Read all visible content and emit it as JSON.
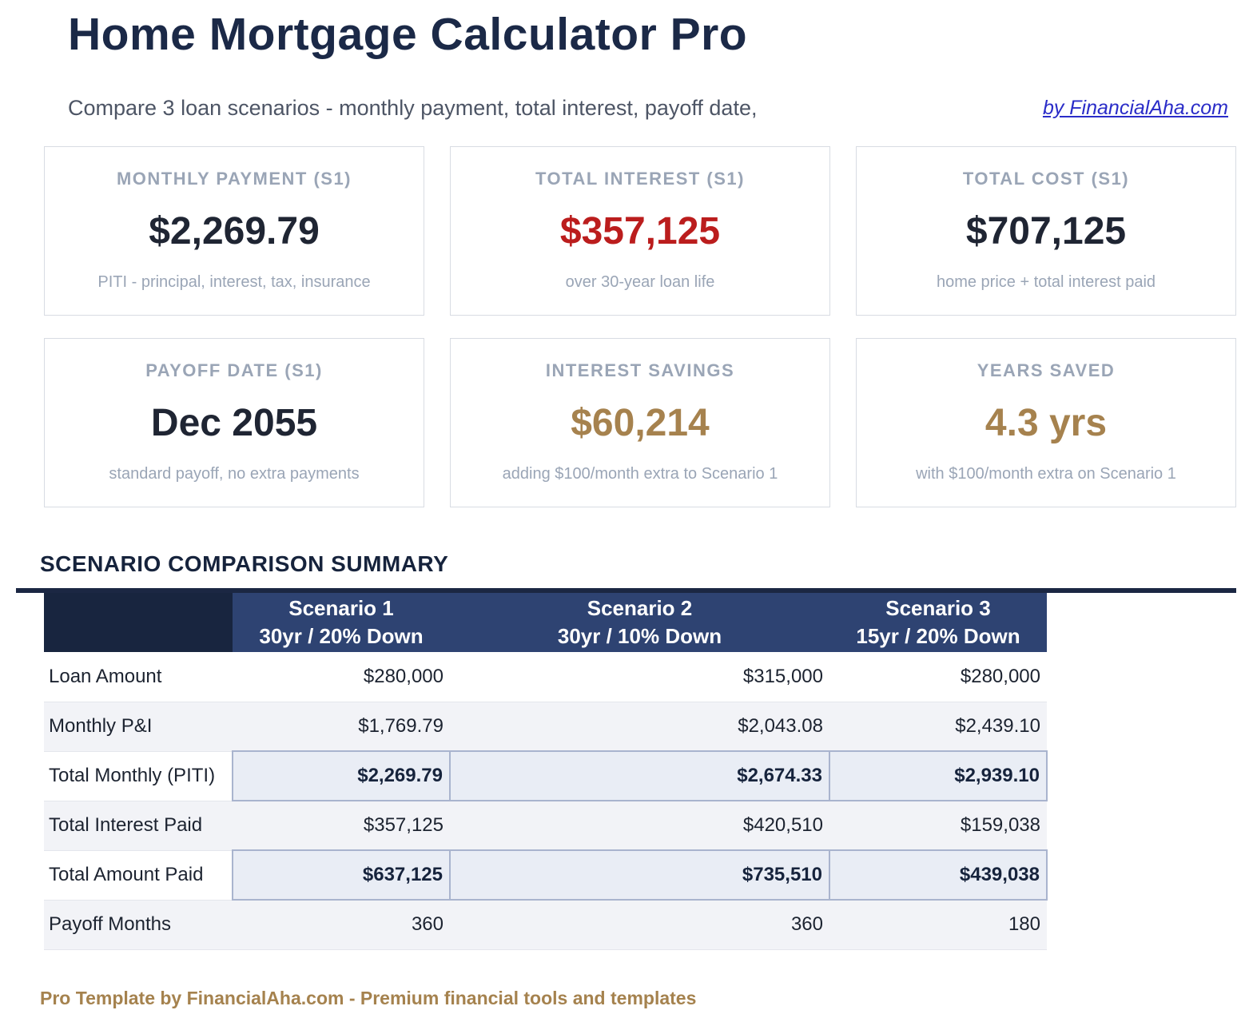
{
  "header": {
    "title": "Home Mortgage Calculator Pro",
    "subtitle": "Compare 3 loan scenarios - monthly payment, total interest, payoff date,",
    "byline": "by FinancialAha.com"
  },
  "colors": {
    "navy_title": "#1b2947",
    "navy_rule": "#1b2743",
    "navy_corner_cell": "#18253f",
    "navy_header_band": "#2e4372",
    "value_dark": "#1f2533",
    "value_red": "#bb1d1d",
    "value_gold": "#a6824e",
    "muted_label_gray": "#9aa5b6",
    "shaded_row_bg": "#f2f3f7",
    "highlight_cell_bg": "#e9edf5",
    "highlight_cell_border": "#a9b4ce",
    "link_blue": "#2a2cc8"
  },
  "stat_cards": [
    {
      "label": "MONTHLY PAYMENT (S1)",
      "value": "$2,269.79",
      "description": "PITI - principal, interest, tax, insurance",
      "value_color": "dark"
    },
    {
      "label": "TOTAL INTEREST (S1)",
      "value": "$357,125",
      "description": "over 30-year loan life",
      "value_color": "red"
    },
    {
      "label": "TOTAL COST (S1)",
      "value": "$707,125",
      "description": "home price + total interest paid",
      "value_color": "dark"
    },
    {
      "label": "PAYOFF DATE (S1)",
      "value": "Dec 2055",
      "description": "standard payoff, no extra payments",
      "value_color": "dark"
    },
    {
      "label": "INTEREST SAVINGS",
      "value": "$60,214",
      "description": "adding $100/month extra to Scenario 1",
      "value_color": "gold"
    },
    {
      "label": "YEARS SAVED",
      "value": "4.3 yrs",
      "description": "with $100/month extra on Scenario 1",
      "value_color": "gold"
    }
  ],
  "comparison": {
    "heading": "SCENARIO COMPARISON SUMMARY",
    "columns": [
      {
        "title": "Scenario 1",
        "subtitle": "30yr / 20% Down"
      },
      {
        "title": "Scenario 2",
        "subtitle": "30yr / 10% Down"
      },
      {
        "title": "Scenario 3",
        "subtitle": "15yr / 20% Down"
      }
    ],
    "rows": [
      {
        "label": "Loan Amount",
        "values": [
          "$280,000",
          "$315,000",
          "$280,000"
        ],
        "highlight": false
      },
      {
        "label": "Monthly P&I",
        "values": [
          "$1,769.79",
          "$2,043.08",
          "$2,439.10"
        ],
        "highlight": false
      },
      {
        "label": "Total Monthly (PITI)",
        "values": [
          "$2,269.79",
          "$2,674.33",
          "$2,939.10"
        ],
        "highlight": true
      },
      {
        "label": "Total Interest Paid",
        "values": [
          "$357,125",
          "$420,510",
          "$159,038"
        ],
        "highlight": false
      },
      {
        "label": "Total Amount Paid",
        "values": [
          "$637,125",
          "$735,510",
          "$439,038"
        ],
        "highlight": true
      },
      {
        "label": "Payoff Months",
        "values": [
          "360",
          "360",
          "180"
        ],
        "highlight": false
      }
    ]
  },
  "footer": {
    "text": "Pro Template by FinancialAha.com - Premium financial tools and templates"
  }
}
